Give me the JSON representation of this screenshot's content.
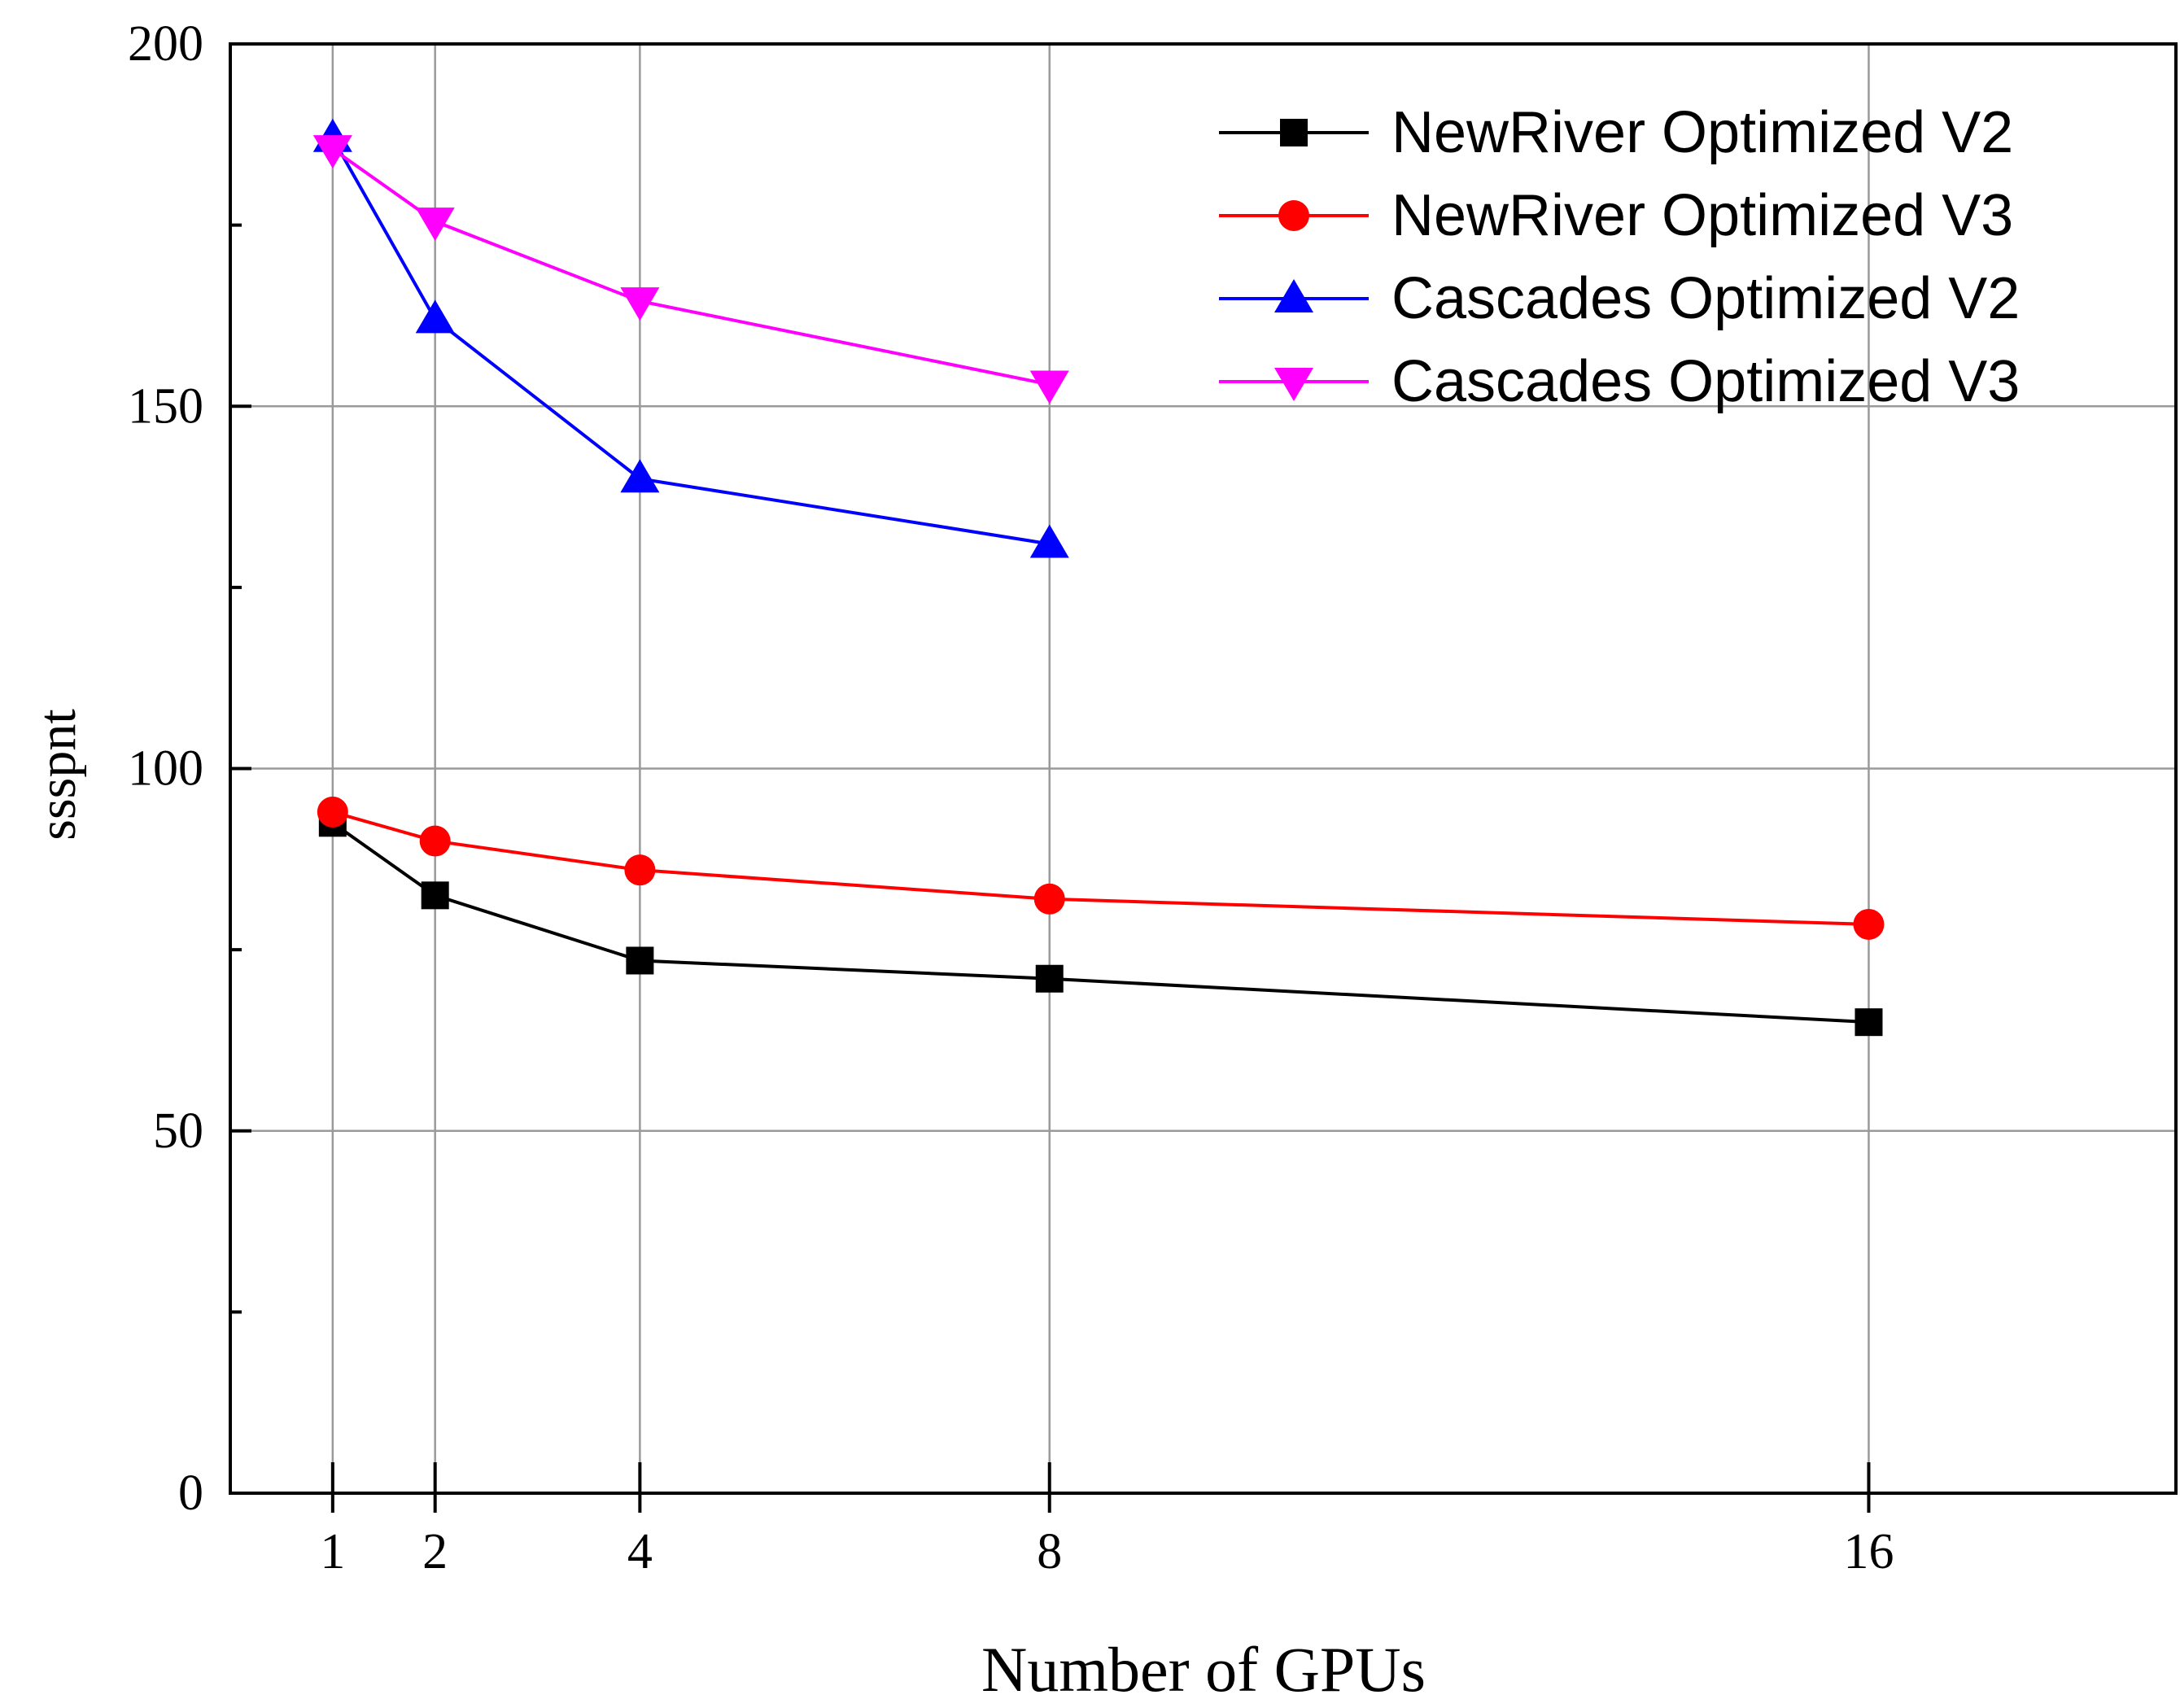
{
  "chart_data": {
    "type": "line",
    "title": "",
    "xlabel": "Number of GPUs",
    "ylabel": "ssspnt",
    "x": [
      1,
      2,
      4,
      8,
      16
    ],
    "x_ticks": [
      "1",
      "2",
      "4",
      "8",
      "16"
    ],
    "x_range": [
      0,
      19
    ],
    "ylim": [
      0,
      200
    ],
    "y_ticks": [
      "0",
      "50",
      "100",
      "150",
      "200"
    ],
    "grid": true,
    "legend_position": "top-right",
    "series": [
      {
        "name": "NewRiver Optimized V2",
        "color": "#000000",
        "marker": "square",
        "x": [
          1,
          2,
          4,
          8,
          16
        ],
        "values": [
          92.5,
          82.5,
          73.5,
          71,
          65
        ]
      },
      {
        "name": "NewRiver Optimized V3",
        "color": "#ff0000",
        "marker": "circle",
        "x": [
          1,
          2,
          4,
          8,
          16
        ],
        "values": [
          94,
          90,
          86,
          82,
          78.5
        ]
      },
      {
        "name": "Cascades Optimized V2",
        "color": "#0000ff",
        "marker": "triangle-up",
        "x": [
          1,
          2,
          4,
          8
        ],
        "values": [
          187,
          162,
          140,
          131
        ]
      },
      {
        "name": "Cascades Optimized V3",
        "color": "#ff00ff",
        "marker": "triangle-down",
        "x": [
          1,
          2,
          4,
          8
        ],
        "values": [
          185.5,
          175.5,
          164.5,
          153
        ]
      }
    ]
  }
}
